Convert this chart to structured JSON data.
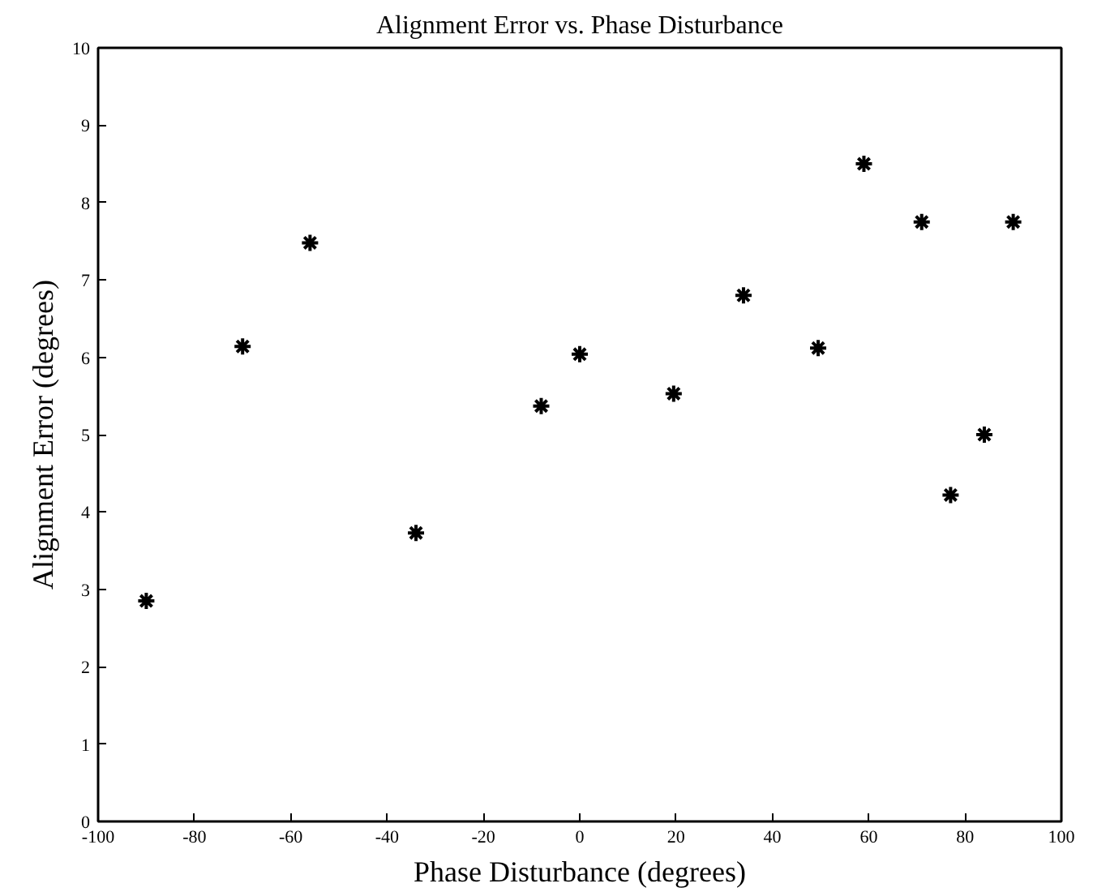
{
  "chart_data": {
    "type": "scatter",
    "title": "Alignment Error vs. Phase Disturbance",
    "xlabel": "Phase Disturbance (degrees)",
    "ylabel": "Alignment Error (degrees)",
    "x": [
      -90,
      -70,
      -56,
      -34,
      -8,
      0,
      19.5,
      34,
      49.5,
      59,
      71,
      77,
      84,
      90
    ],
    "series": [
      {
        "color": "#000000",
        "values": [
          2.85,
          6.14,
          7.48,
          3.73,
          5.37,
          6.04,
          5.53,
          6.8,
          6.12,
          8.5,
          7.75,
          4.22,
          5.0,
          7.75
        ]
      }
    ],
    "xlim": [
      -100,
      100
    ],
    "ylim": [
      0,
      10
    ],
    "xticks": [
      -100,
      -80,
      -60,
      -40,
      -20,
      0,
      20,
      40,
      60,
      80,
      100
    ],
    "yticks": [
      0,
      1,
      2,
      3,
      4,
      5,
      6,
      7,
      8,
      9,
      10
    ],
    "grid": false,
    "marker": "cross"
  }
}
